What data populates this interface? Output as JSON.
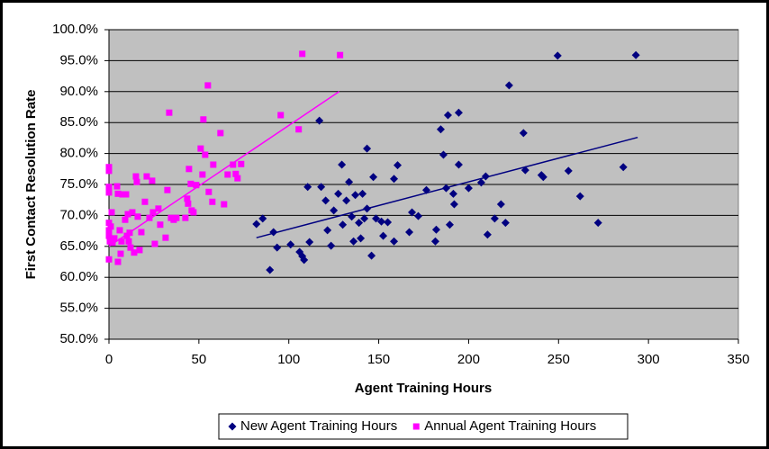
{
  "chart_data": {
    "type": "scatter",
    "x_label": "Agent Training Hours",
    "y_label": "First Contact Resolution Rate",
    "xlim": [
      0,
      350
    ],
    "xticks": [
      0,
      50,
      100,
      150,
      200,
      250,
      300,
      350
    ],
    "ylim": [
      50,
      100
    ],
    "yticks": [
      {
        "value": 50,
        "label": "50.0%"
      },
      {
        "value": 55,
        "label": "55.0%"
      },
      {
        "value": 60,
        "label": "60.0%"
      },
      {
        "value": 65,
        "label": "65.0%"
      },
      {
        "value": 70,
        "label": "70.0%"
      },
      {
        "value": 75,
        "label": "75.0%"
      },
      {
        "value": 80,
        "label": "80.0%"
      },
      {
        "value": 85,
        "label": "85.0%"
      },
      {
        "value": 90,
        "label": "90.0%"
      },
      {
        "value": 95,
        "label": "95.0%"
      },
      {
        "value": 100,
        "label": "100.0%"
      }
    ],
    "grid": true,
    "legend": "bottom",
    "background": "#c0c0c0",
    "series": [
      {
        "name": "New Agent Training Hours",
        "color": "#000080",
        "marker": "diamond",
        "x": [
          82,
          85.5,
          89.5,
          91.5,
          93.5,
          101,
          106,
          107.5,
          108.5,
          110.5,
          111.5,
          117,
          118,
          120.5,
          121.5,
          123.5,
          125,
          127.5,
          129.5,
          130,
          132,
          133.5,
          135,
          136,
          137,
          139,
          140,
          141,
          142,
          143.5,
          143.5,
          146,
          147,
          148.5,
          151.5,
          152.5,
          155,
          158.5,
          158.5,
          160.5,
          167,
          168.5,
          172,
          176.5,
          181.5,
          182,
          184.5,
          186,
          187.5,
          188.5,
          189.5,
          191.5,
          192,
          194.5,
          194.5,
          200,
          207,
          209.5,
          210.5,
          214.5,
          218,
          220.5,
          222.5,
          230.5,
          231.5,
          240.5,
          241.5,
          249.5,
          255.5,
          262,
          272,
          286,
          293
        ],
        "values": [
          68.6,
          69.5,
          61.2,
          67.3,
          64.8,
          65.3,
          64.1,
          63.4,
          62.8,
          74.6,
          65.7,
          85.3,
          74.6,
          72.4,
          67.6,
          65.1,
          70.8,
          73.5,
          78.2,
          68.5,
          72.4,
          75.4,
          69.8,
          65.8,
          73.3,
          68.8,
          66.3,
          73.5,
          69.5,
          71.1,
          80.8,
          63.5,
          76.2,
          69.5,
          69,
          66.7,
          68.9,
          65.8,
          75.9,
          78.1,
          67.3,
          70.5,
          69.9,
          74.1,
          65.8,
          67.7,
          83.9,
          79.8,
          74.4,
          86.2,
          68.5,
          73.5,
          71.8,
          86.6,
          78.2,
          74.4,
          75.3,
          76.3,
          66.9,
          69.5,
          71.8,
          68.8,
          91,
          83.3,
          77.3,
          76.5,
          76.2,
          95.8,
          77.2,
          73.1,
          68.8,
          77.8,
          95.9
        ],
        "trendline": {
          "x": [
            82,
            294
          ],
          "y": [
            66.4,
            82.6
          ]
        }
      },
      {
        "name": "Annual Agent Training Hours",
        "color": "#ff00ff",
        "marker": "square",
        "x": [
          0,
          0,
          0,
          0,
          0,
          0,
          0,
          0,
          0.5,
          1,
          1.5,
          2,
          3,
          4.5,
          5,
          5,
          6,
          6.5,
          7,
          7.5,
          9,
          9.5,
          10,
          10.5,
          11,
          11.5,
          12,
          13,
          14,
          15,
          15.5,
          16,
          17,
          18,
          20,
          21,
          22.5,
          24,
          24.5,
          25.5,
          27.5,
          28.5,
          31.5,
          32.5,
          33.5,
          34.5,
          36,
          37.5,
          42.5,
          43.5,
          44,
          44.5,
          45.5,
          46,
          47,
          48.5,
          51,
          52,
          52.5,
          53.5,
          55,
          55.5,
          57.5,
          58,
          62,
          64,
          66,
          69,
          70.5,
          71.5,
          73.5,
          95.5,
          105.5,
          107.5,
          128.5
        ],
        "values": [
          77.8,
          77.2,
          74.6,
          73.7,
          68.8,
          67.6,
          66.7,
          62.9,
          65.8,
          68.2,
          70.5,
          65.6,
          66.3,
          74.7,
          73.5,
          62.5,
          67.6,
          63.8,
          65.8,
          73.4,
          69.3,
          73.4,
          66.7,
          70.2,
          65.8,
          67.2,
          64.8,
          70.5,
          64,
          76.3,
          75.4,
          69.8,
          64.4,
          67.3,
          72.2,
          76.3,
          69.6,
          75.6,
          70.5,
          65.4,
          71.1,
          68.5,
          66.4,
          74.1,
          86.6,
          69.6,
          69.3,
          69.6,
          69.6,
          72.7,
          71.9,
          77.5,
          75.1,
          70.8,
          70.5,
          74.9,
          80.8,
          76.6,
          85.5,
          79.8,
          91,
          73.8,
          72.2,
          78.2,
          83.3,
          71.8,
          76.6,
          78.2,
          76.7,
          76,
          78.3,
          86.2,
          83.9,
          96.1,
          95.9
        ],
        "trendline": {
          "x": [
            0,
            128
          ],
          "y": [
            65,
            90
          ]
        }
      }
    ]
  }
}
